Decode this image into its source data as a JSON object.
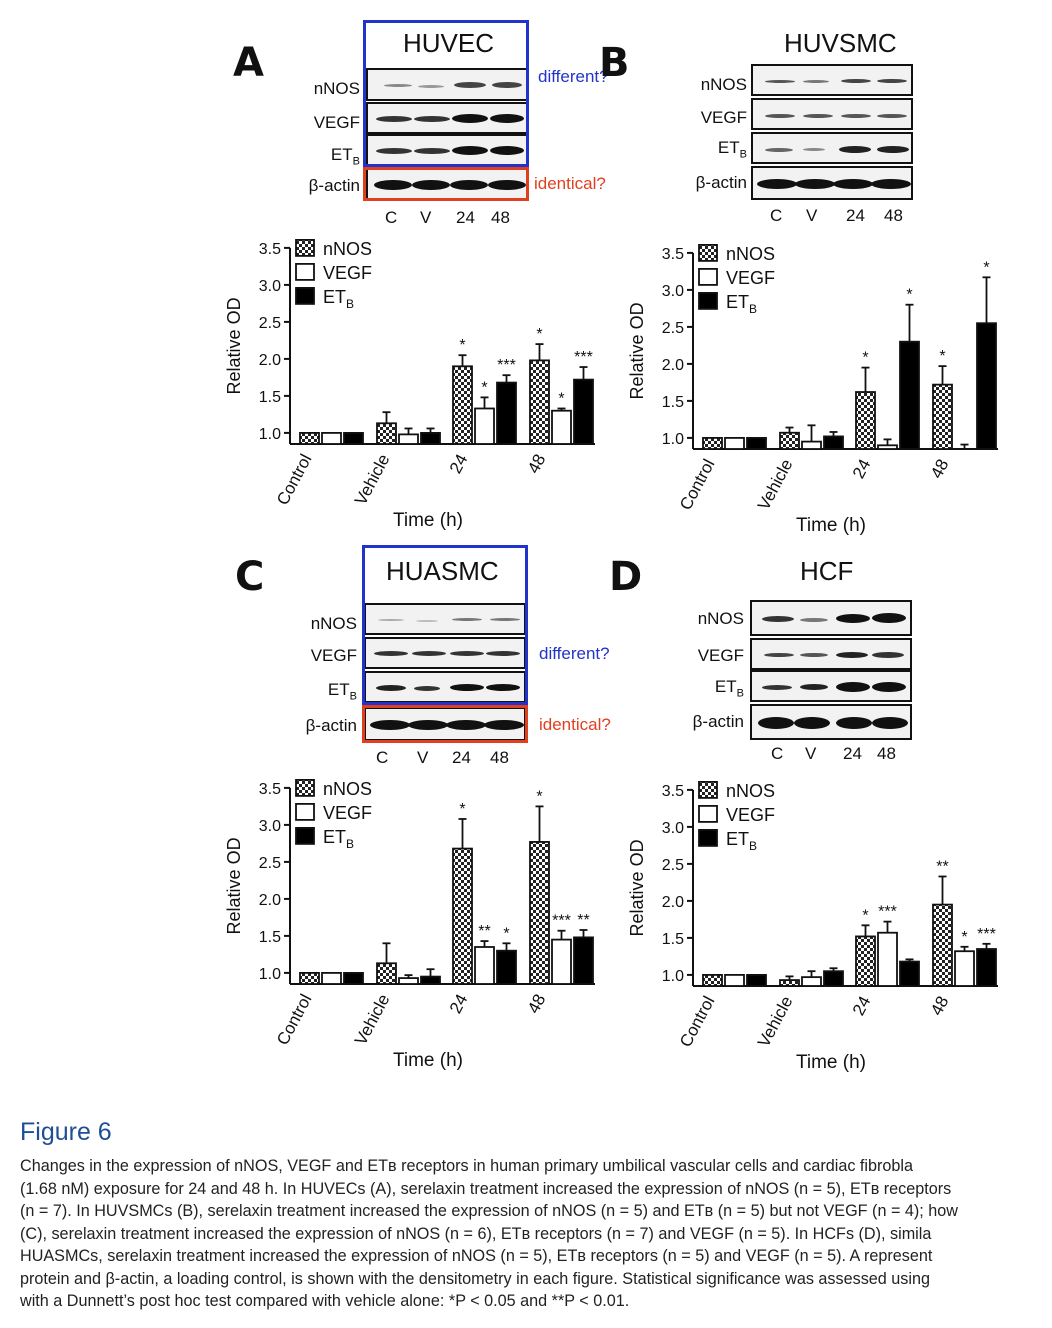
{
  "figure": {
    "title": "Figure 6",
    "caption_lines": [
      "Changes in the expression of nNOS, VEGF and ETʙ receptors in human primary umbilical vascular cells and cardiac fibrobla",
      "(1.68 nM) exposure for 24 and 48 h. In HUVECs (A), serelaxin treatment increased the expression of nNOS (n = 5), ETʙ receptors",
      "(n = 7). In HUVSMCs (B), serelaxin treatment increased the expression of nNOS (n = 5) and ETʙ (n = 5) but not VEGF (n = 4); how",
      "(C), serelaxin treatment increased the expression of nNOS (n = 6), ETʙ receptors (n = 7) and VEGF (n = 5). In HCFs (D), simila",
      "HUASMCs, serelaxin treatment increased the expression of nNOS (n = 5), ETʙ receptors (n = 5) and VEGF (n = 5). A represent",
      "protein and β-actin, a loading control, is shown with the densitometry in each figure. Statistical significance was assessed using",
      "with a Dunnett’s post hoc test compared with vehicle alone: *P < 0.05 and **P < 0.01."
    ]
  },
  "blot_labels": {
    "nnos": "nNOS",
    "vegf": "VEGF",
    "et": "ET",
    "et_sub": "B",
    "actin": "β-actin"
  },
  "lanes": [
    "C",
    "V",
    "24",
    "48"
  ],
  "annotations": {
    "different": "different?",
    "identical": "identical?"
  },
  "axis_common": {
    "ylabel": "Relative OD",
    "xlabel": "Time (h)",
    "yticks": [
      "1.0",
      "1.5",
      "2.0",
      "2.5",
      "3.0",
      "3.5"
    ],
    "legend": [
      "nNOS",
      "VEGF",
      "ET"
    ],
    "legend_sub": "B"
  },
  "colors": {
    "blue_box": "#2233cc",
    "red_box": "#e0401f",
    "caption_title": "#1f4e96",
    "bar_black": "#000000"
  },
  "panels": [
    {
      "letter": "A",
      "cell": "HUVEC"
    },
    {
      "letter": "B",
      "cell": "HUVSMC"
    },
    {
      "letter": "C",
      "cell": "HUASMC"
    },
    {
      "letter": "D",
      "cell": "HCF"
    }
  ],
  "chart_data": [
    {
      "type": "bar",
      "title": "HUVEC",
      "xlabel": "Time (h)",
      "ylabel": "Relative OD",
      "ylim": [
        0.85,
        3.5
      ],
      "categories": [
        "Control",
        "Vehicle",
        "24",
        "48"
      ],
      "series": [
        {
          "name": "nNOS",
          "values": [
            1.0,
            1.13,
            1.9,
            1.98
          ],
          "errors": [
            0,
            0.15,
            0.15,
            0.22
          ],
          "sig": [
            "",
            "",
            "*",
            "*"
          ]
        },
        {
          "name": "VEGF",
          "values": [
            1.0,
            0.98,
            1.33,
            1.3
          ],
          "errors": [
            0,
            0.08,
            0.15,
            0.03
          ],
          "sig": [
            "",
            "",
            "*",
            "*"
          ]
        },
        {
          "name": "ETB",
          "values": [
            1.0,
            1.0,
            1.68,
            1.72
          ],
          "errors": [
            0,
            0.06,
            0.1,
            0.17
          ],
          "sig": [
            "",
            "",
            "***",
            "***"
          ]
        }
      ]
    },
    {
      "type": "bar",
      "title": "HUVSMC",
      "xlabel": "Time (h)",
      "ylabel": "Relative OD",
      "ylim": [
        0.85,
        3.5
      ],
      "categories": [
        "Control",
        "Vehicle",
        "24",
        "48"
      ],
      "series": [
        {
          "name": "nNOS",
          "values": [
            1.0,
            1.07,
            1.62,
            1.72
          ],
          "errors": [
            0,
            0.07,
            0.33,
            0.25
          ],
          "sig": [
            "",
            "",
            "*",
            "*"
          ]
        },
        {
          "name": "VEGF",
          "values": [
            1.0,
            0.95,
            0.9,
            0.85
          ],
          "errors": [
            0,
            0.22,
            0.08,
            0.06
          ],
          "sig": [
            "",
            "",
            "",
            ""
          ]
        },
        {
          "name": "ETB",
          "values": [
            1.0,
            1.02,
            2.3,
            2.55
          ],
          "errors": [
            0,
            0.06,
            0.5,
            0.62
          ],
          "sig": [
            "",
            "",
            "*",
            "*"
          ]
        }
      ]
    },
    {
      "type": "bar",
      "title": "HUASMC",
      "xlabel": "Time (h)",
      "ylabel": "Relative OD",
      "ylim": [
        0.85,
        3.5
      ],
      "categories": [
        "Control",
        "Vehicle",
        "24",
        "48"
      ],
      "series": [
        {
          "name": "nNOS",
          "values": [
            1.0,
            1.13,
            2.68,
            2.77
          ],
          "errors": [
            0,
            0.27,
            0.4,
            0.48
          ],
          "sig": [
            "",
            "",
            "*",
            "*"
          ]
        },
        {
          "name": "VEGF",
          "values": [
            1.0,
            0.93,
            1.35,
            1.45
          ],
          "errors": [
            0,
            0.04,
            0.08,
            0.12
          ],
          "sig": [
            "",
            "",
            "**",
            "***"
          ]
        },
        {
          "name": "ETB",
          "values": [
            1.0,
            0.95,
            1.3,
            1.48
          ],
          "errors": [
            0,
            0.1,
            0.1,
            0.1
          ],
          "sig": [
            "",
            "",
            "*",
            "**"
          ]
        }
      ]
    },
    {
      "type": "bar",
      "title": "HCF",
      "xlabel": "Time (h)",
      "ylabel": "Relative OD",
      "ylim": [
        0.85,
        3.5
      ],
      "categories": [
        "Control",
        "Vehicle",
        "24",
        "48"
      ],
      "series": [
        {
          "name": "nNOS",
          "values": [
            1.0,
            0.93,
            1.52,
            1.95
          ],
          "errors": [
            0,
            0.05,
            0.15,
            0.38
          ],
          "sig": [
            "",
            "",
            "*",
            "**"
          ]
        },
        {
          "name": "VEGF",
          "values": [
            1.0,
            0.97,
            1.57,
            1.32
          ],
          "errors": [
            0,
            0.08,
            0.15,
            0.06
          ],
          "sig": [
            "",
            "",
            "***",
            "*"
          ]
        },
        {
          "name": "ETB",
          "values": [
            1.0,
            1.05,
            1.18,
            1.35
          ],
          "errors": [
            0,
            0.04,
            0.03,
            0.07
          ],
          "sig": [
            "",
            "",
            "",
            "***"
          ]
        }
      ]
    }
  ]
}
